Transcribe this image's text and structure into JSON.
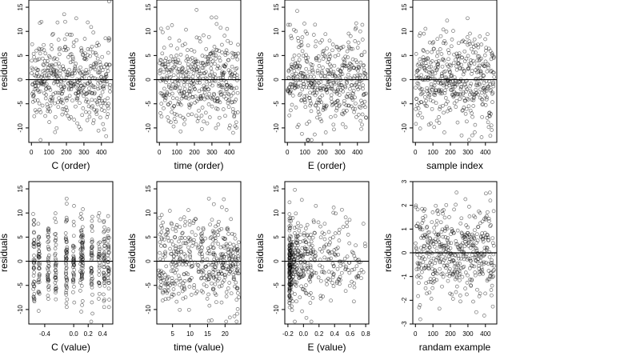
{
  "chart_data": [
    {
      "type": "scatter",
      "xlabel": "C (order)",
      "ylabel": "residuals",
      "xlim": [
        -15,
        465
      ],
      "ylim": [
        -13,
        16.5
      ],
      "xticks": [
        0,
        100,
        200,
        300,
        400
      ],
      "xtick_labels": [
        "0",
        "100",
        "200",
        "300",
        "400"
      ],
      "yticks": [
        -10,
        -5,
        0,
        5,
        10,
        15
      ],
      "ytick_labels": [
        "-10",
        "-5",
        "0",
        "5",
        "10",
        "15"
      ],
      "hline": 0,
      "x_mode": "order",
      "x_range": [
        1,
        450
      ],
      "point_count": 450,
      "y_stats": {
        "mean": 0,
        "sd": 4.6,
        "max": 16.2,
        "min": -12.5
      }
    },
    {
      "type": "scatter",
      "xlabel": "time (order)",
      "ylabel": "residuals",
      "xlim": [
        -15,
        465
      ],
      "ylim": [
        -13,
        16.5
      ],
      "xticks": [
        0,
        100,
        200,
        300,
        400
      ],
      "xtick_labels": [
        "0",
        "100",
        "200",
        "300",
        "400"
      ],
      "yticks": [
        -10,
        -5,
        0,
        5,
        10,
        15
      ],
      "ytick_labels": [
        "-10",
        "-5",
        "0",
        "5",
        "10",
        "15"
      ],
      "hline": 0,
      "x_mode": "order",
      "x_range": [
        1,
        450
      ],
      "point_count": 450,
      "y_stats": {
        "mean": 0,
        "sd": 4.6,
        "max": 16.2,
        "min": -12.5
      }
    },
    {
      "type": "scatter",
      "xlabel": "E (order)",
      "ylabel": "residuals",
      "xlim": [
        -15,
        465
      ],
      "ylim": [
        -13,
        16.5
      ],
      "xticks": [
        0,
        100,
        200,
        300,
        400
      ],
      "xtick_labels": [
        "0",
        "100",
        "200",
        "300",
        "400"
      ],
      "yticks": [
        -10,
        -5,
        0,
        5,
        10,
        15
      ],
      "ytick_labels": [
        "-10",
        "-5",
        "0",
        "5",
        "10",
        "15"
      ],
      "hline": 0,
      "x_mode": "order",
      "x_range": [
        1,
        450
      ],
      "point_count": 450,
      "y_stats": {
        "mean": 0,
        "sd": 4.6,
        "max": 16.2,
        "min": -12.5
      }
    },
    {
      "type": "scatter",
      "xlabel": "sample index",
      "ylabel": "residuals",
      "xlim": [
        -15,
        465
      ],
      "ylim": [
        -13,
        16.5
      ],
      "xticks": [
        0,
        100,
        200,
        300,
        400
      ],
      "xtick_labels": [
        "0",
        "100",
        "200",
        "300",
        "400"
      ],
      "yticks": [
        -10,
        -5,
        0,
        5,
        10,
        15
      ],
      "ytick_labels": [
        "-10",
        "-5",
        "0",
        "5",
        "10",
        "15"
      ],
      "hline": 0,
      "x_mode": "order",
      "x_range": [
        1,
        450
      ],
      "point_count": 450,
      "y_stats": {
        "mean": 0,
        "sd": 4.6,
        "max": 16.2,
        "min": -12.5
      }
    },
    {
      "type": "scatter",
      "xlabel": "C (value)",
      "ylabel": "residuals",
      "xlim": [
        -0.62,
        0.54
      ],
      "ylim": [
        -13,
        16.5
      ],
      "xticks": [
        -0.4,
        0.0,
        0.2,
        0.4
      ],
      "xtick_labels": [
        "-0.4",
        "0.0",
        "0.2",
        "0.4"
      ],
      "yticks": [
        -10,
        -5,
        0,
        5,
        10,
        15
      ],
      "ytick_labels": [
        "-10",
        "-5",
        "0",
        "5",
        "10",
        "15"
      ],
      "hline": 0,
      "x_mode": "clustered",
      "x_clusters": [
        -0.55,
        -0.48,
        -0.35,
        -0.25,
        -0.1,
        0.0,
        0.1,
        0.12,
        0.25,
        0.35,
        0.42,
        0.48
      ],
      "point_count": 450,
      "y_stats": {
        "mean": 0,
        "sd": 4.6,
        "max": 16.2,
        "min": -12.5
      }
    },
    {
      "type": "scatter",
      "xlabel": "time (value)",
      "ylabel": "residuals",
      "xlim": [
        0.5,
        24.5
      ],
      "ylim": [
        -13,
        16.5
      ],
      "xticks": [
        5,
        10,
        15,
        20
      ],
      "xtick_labels": [
        "5",
        "10",
        "15",
        "20"
      ],
      "yticks": [
        -10,
        -5,
        0,
        5,
        10,
        15
      ],
      "ytick_labels": [
        "-10",
        "-5",
        "0",
        "5",
        "10",
        "15"
      ],
      "hline": 0,
      "x_mode": "uniform",
      "x_range": [
        1,
        24
      ],
      "point_count": 450,
      "y_stats": {
        "mean": 0,
        "sd": 4.6,
        "max": 16.2,
        "min": -12.5
      }
    },
    {
      "type": "scatter",
      "xlabel": "E (value)",
      "ylabel": "residuals",
      "xlim": [
        -0.24,
        0.84
      ],
      "ylim": [
        -13,
        16.5
      ],
      "xticks": [
        -0.2,
        0.0,
        0.2,
        0.4,
        0.6,
        0.8
      ],
      "xtick_labels": [
        "-0.2",
        "0.0",
        "0.2",
        "0.4",
        "0.6",
        "0.8"
      ],
      "yticks": [
        -10,
        -5,
        0,
        5,
        10,
        15
      ],
      "ytick_labels": [
        "-10",
        "-5",
        "0",
        "5",
        "10",
        "15"
      ],
      "hline": 0,
      "x_mode": "skewed",
      "x_range": [
        -0.18,
        0.8
      ],
      "point_count": 450,
      "y_stats": {
        "mean": 0,
        "sd": 4.6,
        "max": 16.2,
        "min": -12.5
      }
    },
    {
      "type": "scatter",
      "xlabel": "randam example",
      "ylabel": "residuals",
      "xlim": [
        -15,
        465
      ],
      "ylim": [
        -3,
        3
      ],
      "xticks": [
        0,
        100,
        200,
        300,
        400
      ],
      "xtick_labels": [
        "0",
        "100",
        "200",
        "300",
        "400"
      ],
      "yticks": [
        -3,
        -2,
        -1,
        0,
        1,
        2,
        3
      ],
      "ytick_labels": [
        "-3",
        "-2",
        "-1",
        "0",
        "1",
        "2",
        "3"
      ],
      "hline": 0,
      "x_mode": "order",
      "x_range": [
        1,
        450
      ],
      "point_count": 450,
      "y_stats": {
        "mean": 0,
        "sd": 1,
        "max": 2.8,
        "min": -2.8
      }
    }
  ]
}
